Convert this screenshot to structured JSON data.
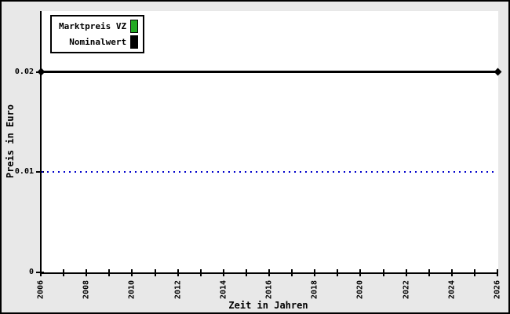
{
  "chart_data": {
    "type": "line",
    "title": "",
    "xlabel": "Zeit in Jahren",
    "ylabel": "Preis in Euro",
    "x_range": [
      2006,
      2026
    ],
    "ylim": [
      0,
      0.0261
    ],
    "x_ticks": [
      2006,
      2007,
      2008,
      2009,
      2010,
      2011,
      2012,
      2013,
      2014,
      2015,
      2016,
      2017,
      2018,
      2019,
      2020,
      2021,
      2022,
      2023,
      2024,
      2025,
      2026
    ],
    "x_tick_labels": [
      "2006",
      "2008",
      "2010",
      "2012",
      "2014",
      "2016",
      "2018",
      "2020",
      "2022",
      "2024",
      "2026"
    ],
    "y_ticks": [
      0,
      0.01,
      0.02
    ],
    "y_tick_labels": [
      "0",
      "0.01",
      "0.02"
    ],
    "legend_position": "top-left",
    "grid": false,
    "legend": [
      {
        "label": "Marktpreis VZ",
        "color": "#22aa22"
      },
      {
        "label": "Nominalwert",
        "color": "#000000"
      }
    ],
    "series": [
      {
        "name": "Nominalwert",
        "color": "#000000",
        "style": "solid",
        "marker": "diamond",
        "x": [
          2006,
          2026
        ],
        "y": [
          0.02,
          0.02
        ]
      }
    ],
    "reference_line": {
      "y": 0.01,
      "color": "#0000cc",
      "style": "dotted"
    }
  }
}
